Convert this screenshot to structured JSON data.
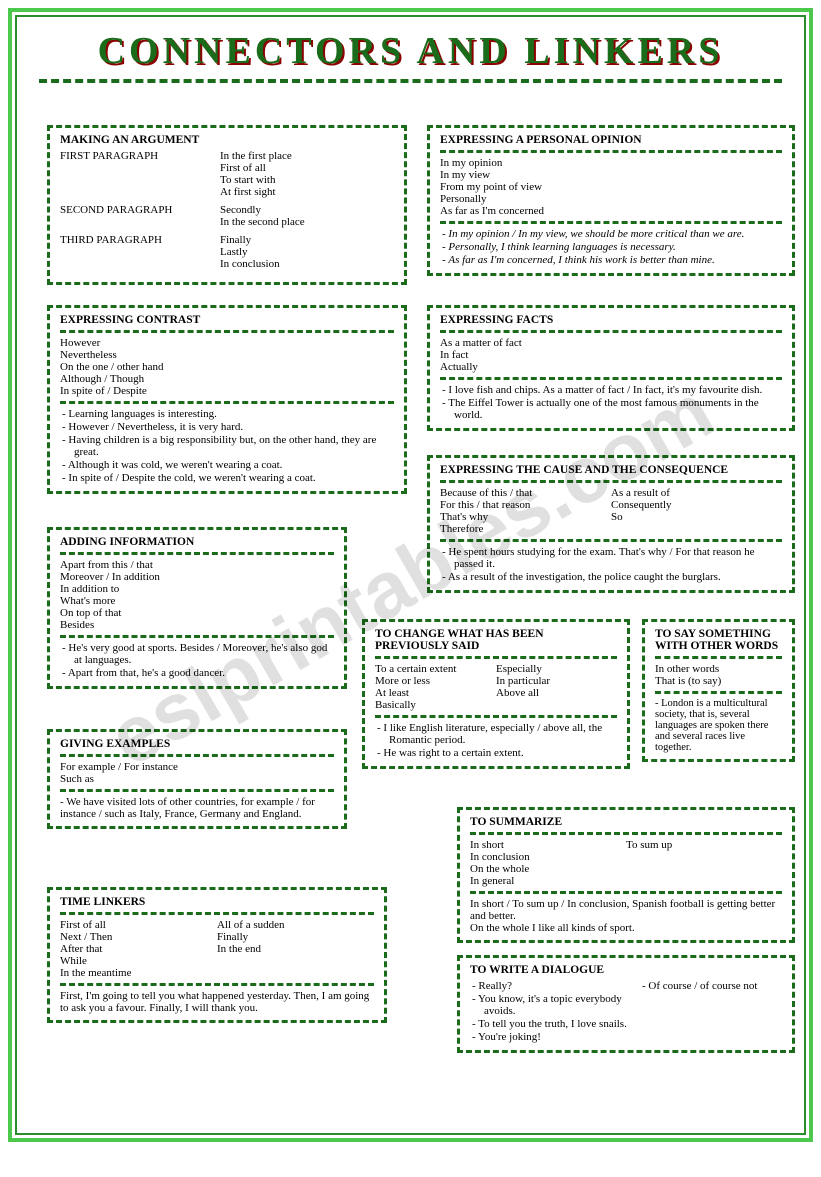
{
  "page": {
    "title": "CONNECTORS AND LINKERS",
    "watermark": "eslprintables.com",
    "colors": {
      "outer_border": "#4cc94c",
      "inner_border": "#2a8c2a",
      "dashed": "#1a6b1a",
      "title_color": "#1a6b1a",
      "title_shadow": "#8b0000",
      "text": "#000000",
      "bg": "#ffffff"
    },
    "fonts": {
      "body": "Times New Roman",
      "title": "Comic Sans MS",
      "body_size": 11,
      "title_size": 38
    }
  },
  "boxes": {
    "making_argument": {
      "title": "MAKING AN ARGUMENT",
      "rows": [
        {
          "label": "FIRST PARAGRAPH",
          "items": [
            "In the first place",
            "First of all",
            "To start with",
            "At first sight"
          ]
        },
        {
          "label": "SECOND PARAGRAPH",
          "items": [
            "Secondly",
            "In the second place"
          ]
        },
        {
          "label": "THIRD PARAGRAPH",
          "items": [
            "Finally",
            "Lastly",
            "In conclusion"
          ]
        }
      ]
    },
    "personal_opinion": {
      "title": "EXPRESSING A PERSONAL OPINION",
      "items": [
        "In my opinion",
        "In my view",
        "From my point of view",
        "Personally",
        "As far as I'm concerned"
      ],
      "examples": [
        "In my opinion / In my view, we should be more critical than we are.",
        "Personally, I think learning languages is necessary.",
        "As far as I'm concerned, I think his work is better than mine."
      ]
    },
    "contrast": {
      "title": "EXPRESSING CONTRAST",
      "items": [
        "However",
        "Nevertheless",
        "On the one / other hand",
        "Although / Though",
        "In spite of / Despite"
      ],
      "examples": [
        "Learning languages is interesting.",
        "However / Nevertheless, it is very hard.",
        "Having children is a big responsibility but, on the other hand, they are great.",
        "Although it was cold, we weren't wearing a coat.",
        "In spite of / Despite the cold, we weren't wearing a coat."
      ]
    },
    "facts": {
      "title": "EXPRESSING FACTS",
      "items": [
        "As a matter of fact",
        "In fact",
        "Actually"
      ],
      "examples": [
        "I love fish and chips. As a matter of fact / In fact, it's my favourite dish.",
        "The Eiffel Tower is actually one of the most famous monuments in the world."
      ]
    },
    "cause": {
      "title": "EXPRESSING THE CAUSE AND THE CONSEQUENCE",
      "col1": [
        "Because of this / that",
        "For this / that reason",
        "That's why",
        "Therefore"
      ],
      "col2": [
        "As a result of",
        "Consequently",
        "So"
      ],
      "examples": [
        "He spent hours studying for the exam. That's why / For that reason he passed it.",
        "As a result of the investigation, the police caught the burglars."
      ]
    },
    "adding": {
      "title": "ADDING INFORMATION",
      "items": [
        "Apart from this / that",
        "Moreover / In addition",
        "In addition to",
        "What's more",
        "On top of that",
        "Besides"
      ],
      "examples": [
        "He's very good at sports. Besides / Moreover, he's also god at languages.",
        "Apart from that, he's a good dancer."
      ]
    },
    "change": {
      "title": "TO CHANGE WHAT HAS BEEN PREVIOUSLY SAID",
      "col1": [
        "To a certain extent",
        "More or less",
        "At least",
        "Basically"
      ],
      "col2": [
        "Especially",
        "In particular",
        "Above all"
      ],
      "examples": [
        "I like English literature, especially / above all, the Romantic period.",
        "He was right to a certain extent."
      ]
    },
    "other_words": {
      "title": "TO SAY SOMETHING WITH OTHER WORDS",
      "items": [
        "In other words",
        "That is (to say)"
      ],
      "example": "- London is a multicultural society, that is, several languages are spoken there and several races live together."
    },
    "examples_box": {
      "title": "GIVING EXAMPLES",
      "items": [
        "For example / For instance",
        "Such as"
      ],
      "example": "- We have visited lots of other countries, for example / for instance / such as Italy, France, Germany and England."
    },
    "summarize": {
      "title": "TO SUMMARIZE",
      "col1": [
        "In short",
        "In conclusion",
        "On the whole",
        "In general"
      ],
      "col2": [
        "To sum up"
      ],
      "examples": [
        "In short / To sum up / In conclusion, Spanish football is getting better and better.",
        "On the whole I like all kinds of sport."
      ]
    },
    "time": {
      "title": "TIME LINKERS",
      "col1": [
        "First of all",
        "Next / Then",
        "After that",
        "While",
        "In the meantime"
      ],
      "col2": [
        "All of a sudden",
        "Finally",
        "In the end"
      ],
      "example": "First, I'm going to tell you what happened yesterday. Then, I am going to ask you a favour. Finally, I will thank you."
    },
    "dialogue": {
      "title": "TO WRITE A DIALOGUE",
      "left": [
        "Really?",
        "You know, it's a topic everybody avoids.",
        "To tell you the truth, I love snails.",
        "You're joking!"
      ],
      "right": "- Of course / of course not"
    }
  }
}
